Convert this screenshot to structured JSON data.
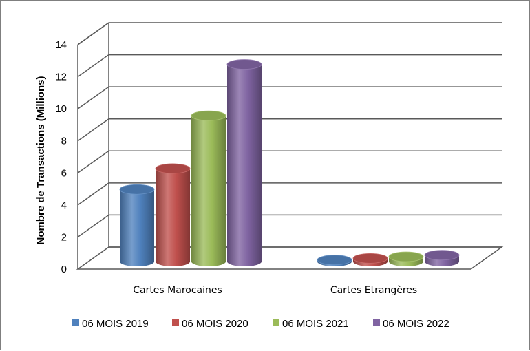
{
  "chart_data": {
    "type": "bar",
    "style": "3d-cylinder",
    "categories": [
      "Cartes Marocaines",
      "Cartes Etrangères"
    ],
    "series": [
      {
        "name": "06 MOIS 2019",
        "color": "#4f81bd",
        "values": [
          4.5,
          0.1
        ]
      },
      {
        "name": "06 MOIS 2020",
        "color": "#c0504d",
        "values": [
          5.8,
          0.2
        ]
      },
      {
        "name": "06 MOIS 2021",
        "color": "#9bbb59",
        "values": [
          9.1,
          0.3
        ]
      },
      {
        "name": "06 MOIS 2022",
        "color": "#8064a2",
        "values": [
          12.3,
          0.4
        ]
      }
    ],
    "ylabel": "Nombre de Transactions (Millions)",
    "ylim": [
      0,
      14
    ],
    "yticks": [
      0,
      2,
      4,
      6,
      8,
      10,
      12,
      14
    ],
    "grid": true,
    "legend": "bottom"
  }
}
